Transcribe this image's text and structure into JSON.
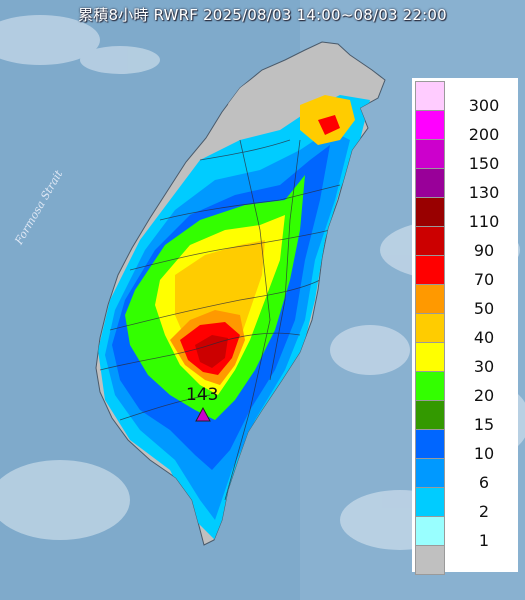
{
  "title": "累積8小時 RWRF 2025/08/03 14:00~08/03 22:00",
  "map_labels": {
    "strait": "Formosa Strait",
    "max_value": "143"
  },
  "legend": {
    "items": [
      {
        "label": "300",
        "color": "#ffccff"
      },
      {
        "label": "200",
        "color": "#ff00ff"
      },
      {
        "label": "150",
        "color": "#cc00cc"
      },
      {
        "label": "130",
        "color": "#990099"
      },
      {
        "label": "110",
        "color": "#990000"
      },
      {
        "label": "90",
        "color": "#cc0000"
      },
      {
        "label": "70",
        "color": "#ff0000"
      },
      {
        "label": "50",
        "color": "#ff9900"
      },
      {
        "label": "40",
        "color": "#ffcc00"
      },
      {
        "label": "30",
        "color": "#ffff00"
      },
      {
        "label": "20",
        "color": "#33ff00"
      },
      {
        "label": "15",
        "color": "#339900"
      },
      {
        "label": "10",
        "color": "#0066ff"
      },
      {
        "label": "6",
        "color": "#0099ff"
      },
      {
        "label": "2",
        "color": "#00ccff"
      },
      {
        "label": "1",
        "color": "#99ffff"
      },
      {
        "label": "",
        "color": "#c0c0c0"
      }
    ]
  }
}
